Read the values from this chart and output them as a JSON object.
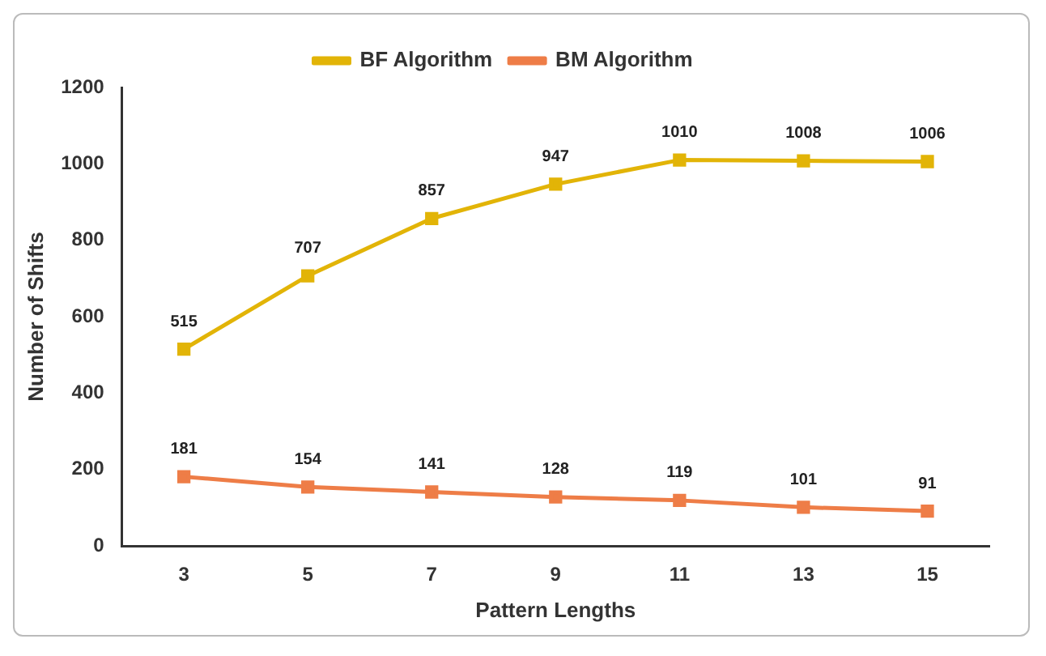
{
  "chart_data": {
    "type": "line",
    "xlabel": "Pattern Lengths",
    "ylabel": "Number of Shifts",
    "categories": [
      "3",
      "5",
      "7",
      "9",
      "11",
      "13",
      "15"
    ],
    "series": [
      {
        "name": "BF Algorithm",
        "color": "#e2b407",
        "values": [
          515,
          707,
          857,
          947,
          1010,
          1008,
          1006
        ]
      },
      {
        "name": "BM Algorithm",
        "color": "#ee7d47",
        "values": [
          181,
          154,
          141,
          128,
          119,
          101,
          91
        ]
      }
    ],
    "ylim": [
      0,
      1200
    ],
    "yticks": [
      0,
      200,
      400,
      600,
      800,
      1000,
      1200
    ],
    "grid": false,
    "legend": "top",
    "marker": "square",
    "line_style": "solid",
    "data_labels": true
  }
}
